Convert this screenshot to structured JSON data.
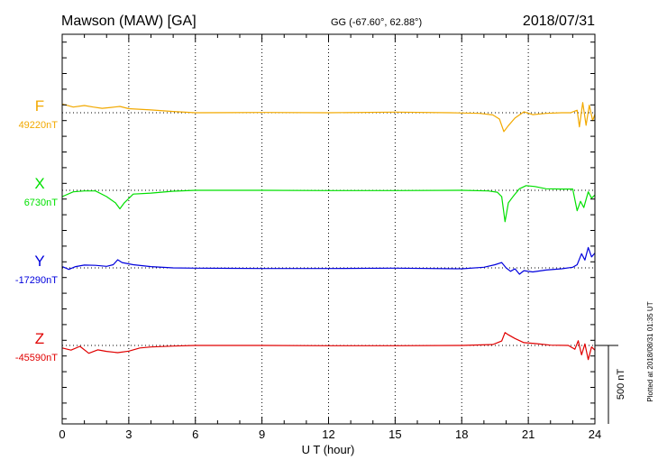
{
  "header": {
    "station": "Mawson (MAW)  [GA]",
    "coords": "GG (-67.60°,  62.88°)",
    "date": "2018/07/31"
  },
  "footer": {
    "plotted": "Plotted at 2018/08/31 01:35 UT",
    "scale_label": "500 nT"
  },
  "colors": {
    "F": "#f2a900",
    "X": "#00e000",
    "Y": "#0000dd",
    "Z": "#e00000"
  },
  "chart_data": {
    "type": "line",
    "title": "Mawson (MAW)  [GA]",
    "xlabel": "U T (hour)",
    "xlim": [
      0,
      24
    ],
    "xticks": [
      0,
      3,
      6,
      9,
      12,
      15,
      18,
      21,
      24
    ],
    "xtick_labels": [
      "0",
      "3",
      "6",
      "9",
      "12",
      "15",
      "18",
      "21",
      "24"
    ],
    "scale_nT": 500,
    "grid": "dotted",
    "series": [
      {
        "name": "F",
        "baseline_label": "49220nT",
        "points": [
          [
            0,
            49276
          ],
          [
            0.5,
            49256
          ],
          [
            1,
            49266
          ],
          [
            1.4,
            49256
          ],
          [
            1.8,
            49248
          ],
          [
            2.2,
            49254
          ],
          [
            2.6,
            49260
          ],
          [
            3,
            49246
          ],
          [
            4,
            49238
          ],
          [
            5,
            49228
          ],
          [
            6,
            49220
          ],
          [
            9,
            49222
          ],
          [
            12,
            49220
          ],
          [
            15,
            49224
          ],
          [
            17.5,
            49220
          ],
          [
            18.8,
            49216
          ],
          [
            19.4,
            49206
          ],
          [
            19.7,
            49180
          ],
          [
            19.9,
            49100
          ],
          [
            20.1,
            49138
          ],
          [
            20.4,
            49186
          ],
          [
            20.8,
            49226
          ],
          [
            21.2,
            49208
          ],
          [
            21.8,
            49216
          ],
          [
            22.5,
            49220
          ],
          [
            22.9,
            49220
          ],
          [
            23.2,
            49236
          ],
          [
            23.3,
            49130
          ],
          [
            23.45,
            49285
          ],
          [
            23.6,
            49140
          ],
          [
            23.75,
            49268
          ],
          [
            23.9,
            49170
          ],
          [
            24,
            49210
          ]
        ]
      },
      {
        "name": "X",
        "baseline_label": "6730nT",
        "points": [
          [
            0,
            6690
          ],
          [
            0.5,
            6720
          ],
          [
            1,
            6726
          ],
          [
            1.5,
            6726
          ],
          [
            2,
            6690
          ],
          [
            2.4,
            6650
          ],
          [
            2.6,
            6612
          ],
          [
            2.8,
            6650
          ],
          [
            3.2,
            6706
          ],
          [
            4,
            6712
          ],
          [
            5,
            6724
          ],
          [
            6,
            6730
          ],
          [
            9,
            6730
          ],
          [
            12,
            6728
          ],
          [
            15,
            6728
          ],
          [
            18,
            6730
          ],
          [
            19.2,
            6726
          ],
          [
            19.6,
            6718
          ],
          [
            19.8,
            6690
          ],
          [
            19.95,
            6530
          ],
          [
            20.1,
            6650
          ],
          [
            20.3,
            6688
          ],
          [
            20.6,
            6740
          ],
          [
            20.9,
            6760
          ],
          [
            21.3,
            6754
          ],
          [
            21.8,
            6740
          ],
          [
            22.5,
            6738
          ],
          [
            23,
            6738
          ],
          [
            23.2,
            6600
          ],
          [
            23.35,
            6660
          ],
          [
            23.5,
            6620
          ],
          [
            23.7,
            6720
          ],
          [
            23.85,
            6680
          ],
          [
            24,
            6700
          ]
        ]
      },
      {
        "name": "Y",
        "baseline_label": "-17290nT",
        "points": [
          [
            0,
            -17282
          ],
          [
            0.3,
            -17300
          ],
          [
            0.6,
            -17282
          ],
          [
            1,
            -17272
          ],
          [
            1.5,
            -17274
          ],
          [
            2,
            -17280
          ],
          [
            2.3,
            -17270
          ],
          [
            2.5,
            -17238
          ],
          [
            2.7,
            -17256
          ],
          [
            3.2,
            -17270
          ],
          [
            4,
            -17282
          ],
          [
            5,
            -17290
          ],
          [
            6,
            -17292
          ],
          [
            9,
            -17294
          ],
          [
            12,
            -17294
          ],
          [
            15,
            -17292
          ],
          [
            18,
            -17296
          ],
          [
            19,
            -17286
          ],
          [
            19.5,
            -17270
          ],
          [
            19.8,
            -17256
          ],
          [
            20,
            -17290
          ],
          [
            20.2,
            -17312
          ],
          [
            20.4,
            -17296
          ],
          [
            20.6,
            -17330
          ],
          [
            20.8,
            -17308
          ],
          [
            21.2,
            -17316
          ],
          [
            21.8,
            -17304
          ],
          [
            22.5,
            -17296
          ],
          [
            23,
            -17286
          ],
          [
            23.2,
            -17270
          ],
          [
            23.4,
            -17200
          ],
          [
            23.55,
            -17240
          ],
          [
            23.7,
            -17160
          ],
          [
            23.85,
            -17220
          ],
          [
            24,
            -17196
          ]
        ]
      },
      {
        "name": "Z",
        "baseline_label": "-45590nT",
        "points": [
          [
            0,
            -45606
          ],
          [
            0.4,
            -45620
          ],
          [
            0.8,
            -45596
          ],
          [
            1.2,
            -45640
          ],
          [
            1.6,
            -45618
          ],
          [
            2,
            -45628
          ],
          [
            2.5,
            -45636
          ],
          [
            3,
            -45626
          ],
          [
            3.5,
            -45606
          ],
          [
            4,
            -45600
          ],
          [
            5,
            -45594
          ],
          [
            6,
            -45590
          ],
          [
            9,
            -45590
          ],
          [
            12,
            -45592
          ],
          [
            15,
            -45592
          ],
          [
            18,
            -45590
          ],
          [
            19.4,
            -45584
          ],
          [
            19.8,
            -45562
          ],
          [
            19.95,
            -45508
          ],
          [
            20.1,
            -45522
          ],
          [
            20.4,
            -45546
          ],
          [
            20.8,
            -45572
          ],
          [
            21.3,
            -45578
          ],
          [
            22,
            -45588
          ],
          [
            22.8,
            -45590
          ],
          [
            23.1,
            -45614
          ],
          [
            23.25,
            -45560
          ],
          [
            23.4,
            -45650
          ],
          [
            23.55,
            -45580
          ],
          [
            23.7,
            -45680
          ],
          [
            23.85,
            -45600
          ],
          [
            24,
            -45620
          ]
        ]
      }
    ]
  }
}
